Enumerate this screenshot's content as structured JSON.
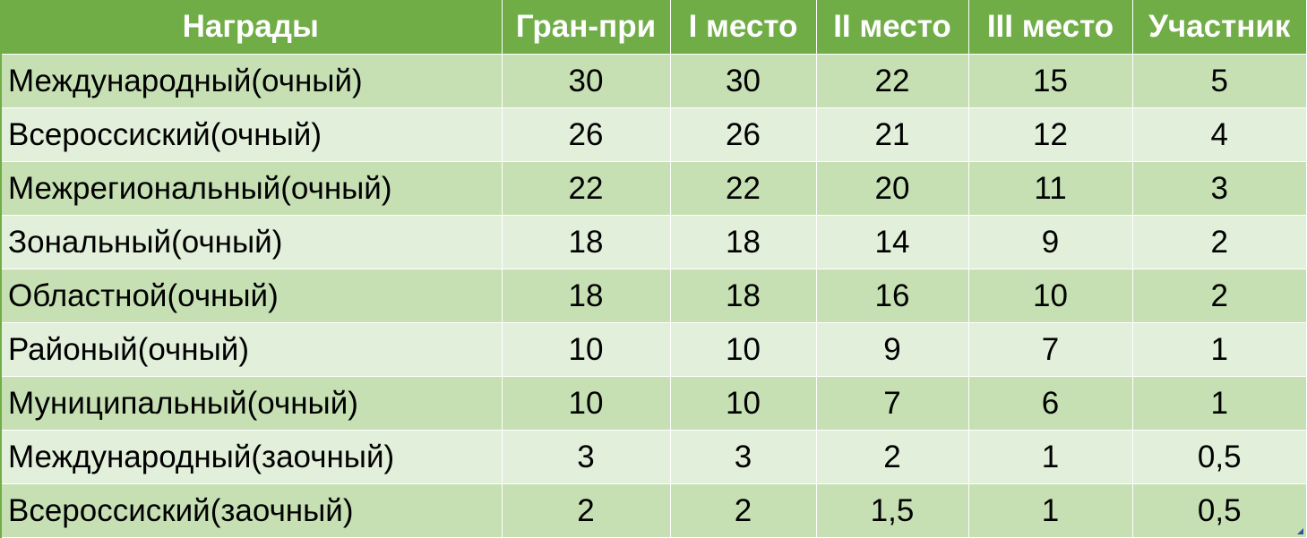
{
  "table": {
    "headers": [
      "Награды",
      "Гран-при",
      "I место",
      "II место",
      "III место",
      "Участник"
    ],
    "rows": [
      [
        "Международный(очный)",
        "30",
        "30",
        "22",
        "15",
        "5"
      ],
      [
        "Всероссиский(очный)",
        "26",
        "26",
        "21",
        "12",
        "4"
      ],
      [
        "Межрегиональный(очный)",
        "22",
        "22",
        "20",
        "11",
        "3"
      ],
      [
        "Зональный(очный)",
        "18",
        "18",
        "14",
        "9",
        "2"
      ],
      [
        "Областной(очный)",
        "18",
        "18",
        "16",
        "10",
        "2"
      ],
      [
        "Районый(очный)",
        "10",
        "10",
        "9",
        "7",
        "1"
      ],
      [
        "Муниципальный(очный)",
        "10",
        "10",
        "7",
        "6",
        "1"
      ],
      [
        "Международный(заочный)",
        "3",
        "3",
        "2",
        "1",
        "0,5"
      ],
      [
        "Всероссиский(заочный)",
        "2",
        "2",
        "1,5",
        "1",
        "0,5"
      ]
    ]
  },
  "colors": {
    "header_bg": "#70ad47",
    "row_dark": "#c6e0b4",
    "row_light": "#e2efda"
  }
}
